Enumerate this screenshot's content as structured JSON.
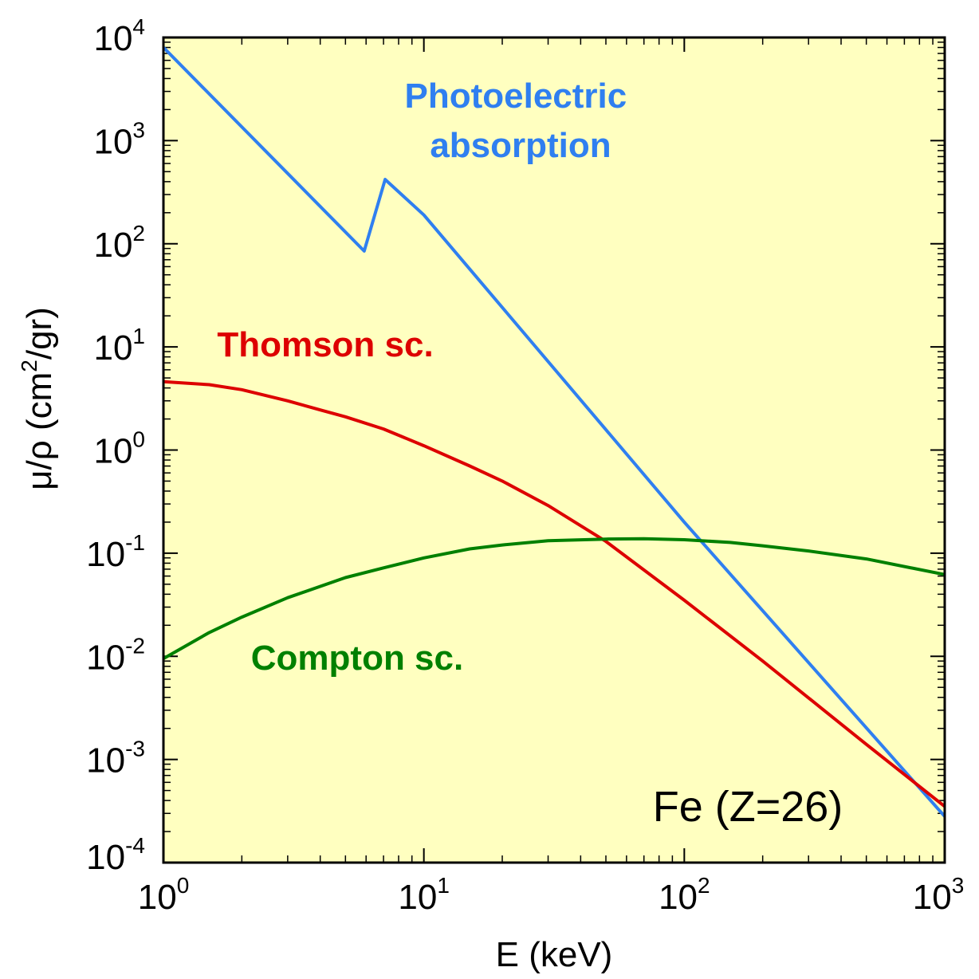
{
  "chart_data": {
    "type": "line",
    "xscale": "log",
    "yscale": "log",
    "xlim": [
      1,
      1000
    ],
    "ylim": [
      0.0001,
      10000
    ],
    "xlabel": "E (keV)",
    "ylabel": {
      "pre": "μ/ρ (cm",
      "sup": "2",
      "post": "/gr)"
    },
    "x_ticks": [
      {
        "base": "10",
        "exp": "0",
        "value": 1
      },
      {
        "base": "10",
        "exp": "1",
        "value": 10
      },
      {
        "base": "10",
        "exp": "2",
        "value": 100
      },
      {
        "base": "10",
        "exp": "3",
        "value": 1000
      }
    ],
    "y_ticks": [
      {
        "base": "10",
        "exp": "4",
        "value": 10000
      },
      {
        "base": "10",
        "exp": "3",
        "value": 1000
      },
      {
        "base": "10",
        "exp": "2",
        "value": 100
      },
      {
        "base": "10",
        "exp": "1",
        "value": 10
      },
      {
        "base": "10",
        "exp": "0",
        "value": 1
      },
      {
        "base": "10",
        "exp": "-1",
        "value": 0.1
      },
      {
        "base": "10",
        "exp": "-2",
        "value": 0.01
      },
      {
        "base": "10",
        "exp": "-3",
        "value": 0.001
      },
      {
        "base": "10",
        "exp": "-4",
        "value": 0.0001
      }
    ],
    "plot_background": "#ffffc0",
    "series": [
      {
        "key": "photoelectric",
        "color": "#2f7ff0",
        "points": [
          [
            1,
            8000
          ],
          [
            5.9,
            85
          ],
          [
            7.1,
            420
          ],
          [
            10,
            190
          ],
          [
            100,
            0.2
          ],
          [
            1000,
            0.00028
          ]
        ]
      },
      {
        "key": "thomson",
        "color": "#dd0000",
        "points": [
          [
            1,
            4.6
          ],
          [
            1.5,
            4.3
          ],
          [
            2,
            3.85
          ],
          [
            3,
            3.0
          ],
          [
            4,
            2.45
          ],
          [
            5,
            2.1
          ],
          [
            7,
            1.6
          ],
          [
            10,
            1.1
          ],
          [
            15,
            0.7
          ],
          [
            20,
            0.5
          ],
          [
            30,
            0.29
          ],
          [
            50,
            0.13
          ],
          [
            100,
            0.035
          ],
          [
            200,
            0.009
          ],
          [
            500,
            0.0014
          ],
          [
            1000,
            0.00035
          ]
        ]
      },
      {
        "key": "compton",
        "color": "#008000",
        "points": [
          [
            1,
            0.0095
          ],
          [
            1.5,
            0.017
          ],
          [
            2,
            0.024
          ],
          [
            3,
            0.037
          ],
          [
            5,
            0.058
          ],
          [
            7,
            0.072
          ],
          [
            10,
            0.09
          ],
          [
            15,
            0.11
          ],
          [
            20,
            0.12
          ],
          [
            30,
            0.132
          ],
          [
            50,
            0.137
          ],
          [
            70,
            0.138
          ],
          [
            100,
            0.135
          ],
          [
            150,
            0.127
          ],
          [
            200,
            0.118
          ],
          [
            300,
            0.105
          ],
          [
            500,
            0.088
          ],
          [
            1000,
            0.062
          ]
        ]
      }
    ],
    "annotations": [
      {
        "key": "photoelectric",
        "lines": [
          "Photoelectric",
          "absorption"
        ],
        "color": "#2f7ff0"
      },
      {
        "key": "thomson",
        "lines": [
          "Thomson sc."
        ],
        "color": "#dd0000"
      },
      {
        "key": "compton",
        "lines": [
          "Compton sc."
        ],
        "color": "#008000"
      }
    ],
    "element_label": "Fe (Z=26)"
  }
}
